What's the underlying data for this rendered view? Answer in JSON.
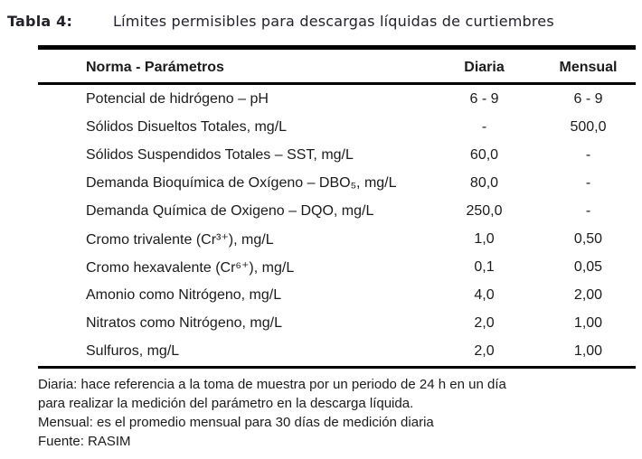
{
  "caption": {
    "label": "Tabla 4:",
    "title": "Límites permisibles para descargas líquidas de curtiembres"
  },
  "table": {
    "headers": {
      "param": "Norma - Parámetros",
      "diaria": "Diaria",
      "mensual": "Mensual"
    },
    "rows": [
      {
        "param": "Potencial de hidrógeno – pH",
        "diaria": "6 - 9",
        "mensual": "6 - 9"
      },
      {
        "param": "Sólidos Disueltos Totales, mg/L",
        "diaria": "-",
        "mensual": "500,0"
      },
      {
        "param": "Sólidos Suspendidos Totales – SST, mg/L",
        "diaria": "60,0",
        "mensual": "-"
      },
      {
        "param": "Demanda Bioquímica de Oxígeno – DBO₅, mg/L",
        "diaria": "80,0",
        "mensual": "-"
      },
      {
        "param": "Demanda Química de Oxigeno – DQO, mg/L",
        "diaria": "250,0",
        "mensual": "-"
      },
      {
        "param": "Cromo trivalente (Cr³⁺), mg/L",
        "diaria": "1,0",
        "mensual": "0,50"
      },
      {
        "param": "Cromo hexavalente (Cr⁶⁺), mg/L",
        "diaria": "0,1",
        "mensual": "0,05"
      },
      {
        "param": "Amonio como Nitrógeno, mg/L",
        "diaria": "4,0",
        "mensual": "2,00"
      },
      {
        "param": "Nitratos como Nitrógeno, mg/L",
        "diaria": "2,0",
        "mensual": "1,00"
      },
      {
        "param": "Sulfuros, mg/L",
        "diaria": "2,0",
        "mensual": "1,00"
      }
    ]
  },
  "notes": {
    "lines": [
      "Diaria: hace referencia a la toma de muestra por un periodo de 24 h en un día",
      "para realizar la medición del parámetro en la descarga líquida.",
      "Mensual: es el promedio mensual para 30 días de medición diaria",
      "Fuente: RASIM"
    ]
  },
  "colors": {
    "text": "#1b1b1b",
    "rule": "#000000",
    "background": "#ffffff"
  }
}
